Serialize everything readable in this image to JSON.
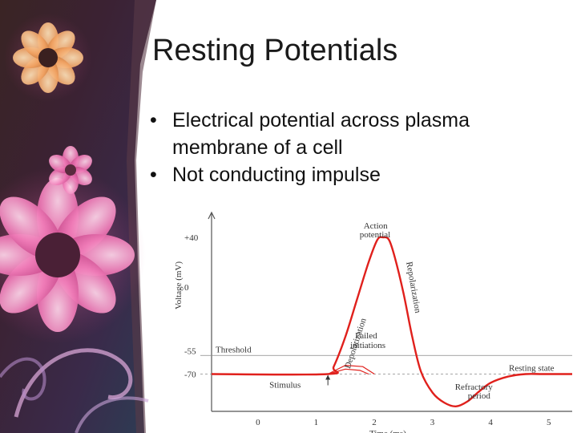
{
  "slide": {
    "title": "Resting Potentials",
    "bullets": [
      "Electrical potential across plasma membrane of a cell",
      "Not conducting impulse"
    ],
    "bullet_symbol": "•"
  },
  "colors": {
    "accent_curve": "#e0201c",
    "panel_dark": "#2a1a2e",
    "flower_pink": "#e66aa8",
    "flower_orange": "#e8a060"
  },
  "chart_data": {
    "type": "line",
    "xlabel": "Time (ms)",
    "ylabel": "Voltage (mV)",
    "x_ticks": [
      "0",
      "1",
      "2",
      "3",
      "4",
      "5"
    ],
    "y_ticks": [
      "+40",
      "0",
      "-55",
      "-70"
    ],
    "xlim": [
      -0.8,
      5.4
    ],
    "ylim": [
      -100,
      60
    ],
    "series": [
      {
        "name": "",
        "x": [
          -0.8,
          1.2,
          1.3,
          1.5,
          1.7,
          1.9,
          2.05,
          2.15,
          2.25,
          2.35,
          2.5,
          2.65,
          2.8,
          3.0,
          3.2,
          3.4,
          3.6,
          3.8,
          4.0,
          4.3,
          4.6,
          4.9,
          5.4
        ],
        "y": [
          -70,
          -70,
          -64,
          -40,
          -10,
          20,
          38,
          40,
          38,
          24,
          -5,
          -40,
          -68,
          -85,
          -93,
          -96,
          -92,
          -84,
          -77,
          -72,
          -70,
          -70,
          -70
        ]
      }
    ],
    "failed_initiations": [
      {
        "x": [
          1.2,
          1.5,
          1.8,
          2.0
        ],
        "y": [
          -70,
          -63,
          -64,
          -70
        ]
      },
      {
        "x": [
          1.2,
          1.5,
          1.75,
          1.9
        ],
        "y": [
          -70,
          -66,
          -67,
          -70
        ]
      }
    ],
    "threshold": -55,
    "resting": -70,
    "stimulus_x": 1.2,
    "annotations": {
      "threshold": "Threshold",
      "stimulus": "Stimulus",
      "action_potential_1": "Action",
      "action_potential_2": "potential",
      "depolarization": "Depolarization",
      "repolarization": "Repolarization",
      "failed_1": "Failed",
      "failed_2": "initiations",
      "resting_state": "Resting state",
      "refractory_1": "Refractory",
      "refractory_2": "period"
    }
  }
}
